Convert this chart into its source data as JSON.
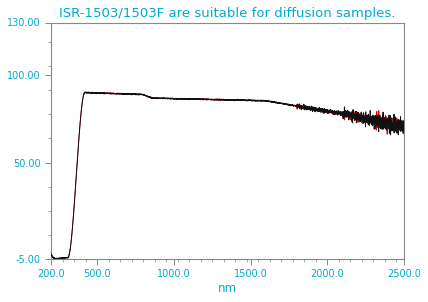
{
  "title": "ISR-1503/1503F are suitable for diffusion samples.",
  "title_color": "#00AACC",
  "xlabel": "nm",
  "xlabel_color": "#00AACC",
  "tick_color": "#00AACC",
  "xlim": [
    200,
    2500
  ],
  "ylim": [
    -5,
    130
  ],
  "yticks": [
    -5.0,
    50.0,
    100.0,
    130.0
  ],
  "xticks": [
    200.0,
    500.0,
    1000.0,
    1500.0,
    2000.0,
    2500.0
  ],
  "line_color_black": "#111111",
  "line_color_red": "#cc0000",
  "background_color": "#ffffff",
  "figwidth": 4.28,
  "figheight": 3.02,
  "dpi": 100
}
